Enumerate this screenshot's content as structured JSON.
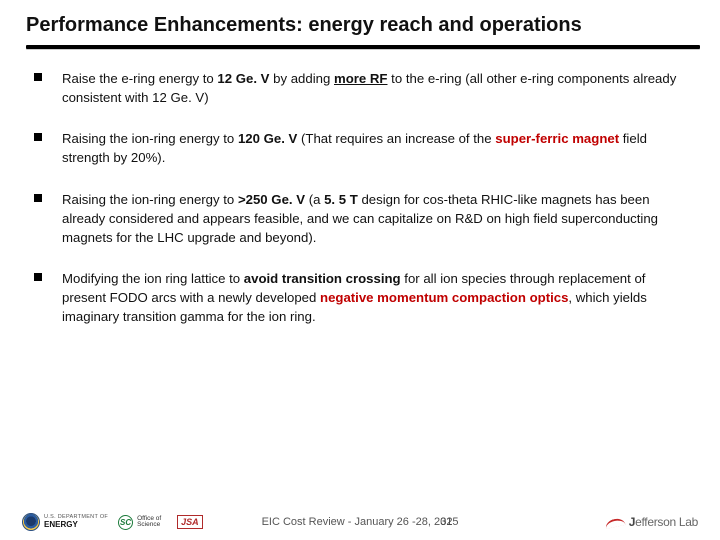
{
  "title": "Performance Enhancements: energy reach and operations",
  "bullets": [
    {
      "pre": "Raise the e-ring energy to ",
      "bold1": "12 Ge. V",
      "mid1": " by adding ",
      "boldU": "more RF",
      "post1": " to the e-ring (all other e-ring components already consistent with 12 Ge. V)"
    },
    {
      "pre": "Raising the ion-ring energy to ",
      "bold1": "120 Ge. V",
      "mid1": " (That requires an increase of the ",
      "red1": "super-ferric magnet",
      "post1": " field strength by 20%)."
    },
    {
      "pre": "Raising the ion-ring energy to ",
      "bold1": ">250 Ge. V",
      "mid1": " (a ",
      "bold2": "5. 5 T",
      "post1": " design for cos-theta RHIC-like magnets has been already considered and appears feasible, and we can capitalize on R&D on high field superconducting magnets for the LHC upgrade and beyond)."
    },
    {
      "pre": "Modifying the ion ring lattice to ",
      "bold1": "avoid transition crossing",
      "mid1": " for all ion species through replacement of present FODO arcs with a newly developed ",
      "red1": "negative momentum compaction optics",
      "post1": ", which yields imaginary transition gamma for the ion ring."
    }
  ],
  "footer": {
    "center": "EIC Cost Review - January 26 -28, 2015",
    "page": "32",
    "doe_l1": "U.S. DEPARTMENT OF",
    "doe_l2": "ENERGY",
    "sc": "SC",
    "oos_l1": "Office of",
    "oos_l2": "Science",
    "jsa": "JSA",
    "jlab_pre": "J",
    "jlab_mid": "efferson ",
    "jlab_end": "Lab"
  }
}
